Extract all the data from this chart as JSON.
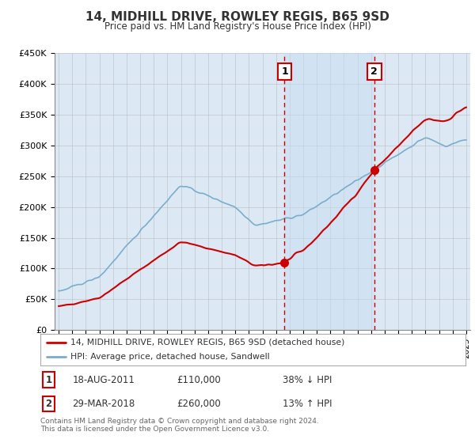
{
  "title": "14, MIDHILL DRIVE, ROWLEY REGIS, B65 9SD",
  "subtitle": "Price paid vs. HM Land Registry's House Price Index (HPI)",
  "legend_line1": "14, MIDHILL DRIVE, ROWLEY REGIS, B65 9SD (detached house)",
  "legend_line2": "HPI: Average price, detached house, Sandwell",
  "footnote": "Contains HM Land Registry data © Crown copyright and database right 2024.\nThis data is licensed under the Open Government Licence v3.0.",
  "transaction1_label": "1",
  "transaction1_date": "18-AUG-2011",
  "transaction1_price": "£110,000",
  "transaction1_hpi": "38% ↓ HPI",
  "transaction1_year": 2011.63,
  "transaction1_value": 110000,
  "transaction2_label": "2",
  "transaction2_date": "29-MAR-2018",
  "transaction2_price": "£260,000",
  "transaction2_hpi": "13% ↑ HPI",
  "transaction2_year": 2018.24,
  "transaction2_value": 260000,
  "background_color": "#ffffff",
  "chart_bg_color": "#dce9f5",
  "shade_color": "#c8dcf0",
  "red_color": "#cc0000",
  "blue_color": "#7aadcc",
  "grid_color": "#bbbbbb",
  "title_color": "#333333",
  "ylim": [
    0,
    450000
  ],
  "xlim": [
    1994.7,
    2025.3
  ]
}
